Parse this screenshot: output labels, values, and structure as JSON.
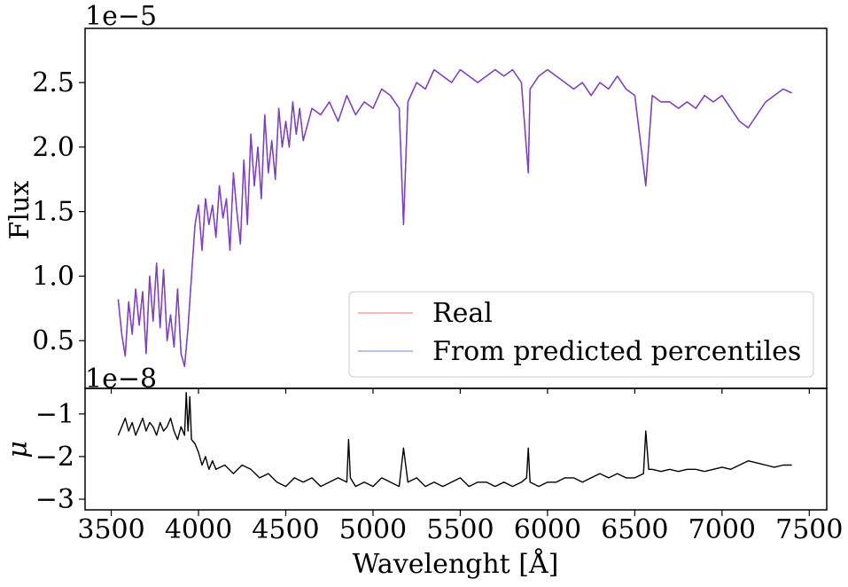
{
  "chart_data": [
    {
      "type": "line",
      "panel": "top",
      "ylabel": "Flux",
      "xlim": [
        3350,
        7600
      ],
      "ylim": [
        0.13,
        2.92
      ],
      "y_offset_label": "1e−5",
      "yticks": [
        0.5,
        1.0,
        1.5,
        2.0,
        2.5
      ],
      "ytick_labels": [
        "0.5",
        "1.0",
        "1.5",
        "2.0",
        "2.5"
      ],
      "grid": false,
      "legend": {
        "placement": "lower-right",
        "entries": [
          {
            "label": "Real",
            "color": "#f4a3a3"
          },
          {
            "label": "From predicted percentiles",
            "color": "#a3a8f0"
          }
        ]
      },
      "series": [
        {
          "name": "Real",
          "color": "#7f3fbf",
          "x": [
            3540,
            3560,
            3580,
            3600,
            3620,
            3640,
            3660,
            3680,
            3700,
            3720,
            3740,
            3760,
            3780,
            3800,
            3820,
            3840,
            3860,
            3880,
            3900,
            3920,
            3940,
            3960,
            3980,
            4000,
            4020,
            4040,
            4060,
            4080,
            4100,
            4120,
            4140,
            4160,
            4180,
            4200,
            4220,
            4240,
            4260,
            4280,
            4300,
            4320,
            4340,
            4360,
            4380,
            4400,
            4420,
            4440,
            4460,
            4480,
            4500,
            4520,
            4540,
            4560,
            4580,
            4600,
            4650,
            4700,
            4750,
            4800,
            4850,
            4900,
            4950,
            5000,
            5050,
            5100,
            5150,
            5175,
            5200,
            5250,
            5300,
            5350,
            5400,
            5450,
            5500,
            5550,
            5600,
            5650,
            5700,
            5750,
            5800,
            5850,
            5890,
            5900,
            5950,
            6000,
            6050,
            6100,
            6150,
            6200,
            6250,
            6300,
            6350,
            6400,
            6450,
            6500,
            6563,
            6600,
            6650,
            6700,
            6750,
            6800,
            6850,
            6900,
            6950,
            7000,
            7050,
            7100,
            7150,
            7200,
            7250,
            7300,
            7350,
            7400
          ],
          "y": [
            0.82,
            0.55,
            0.38,
            0.8,
            0.55,
            0.9,
            0.62,
            0.88,
            0.4,
            1.0,
            0.65,
            1.1,
            0.6,
            1.05,
            0.5,
            0.7,
            0.45,
            0.9,
            0.4,
            0.3,
            0.6,
            1.0,
            1.4,
            1.55,
            1.2,
            1.6,
            1.4,
            1.55,
            1.3,
            1.7,
            1.45,
            1.6,
            1.2,
            1.8,
            1.5,
            1.25,
            1.9,
            1.4,
            2.1,
            1.7,
            2.0,
            1.6,
            2.25,
            1.8,
            2.05,
            1.75,
            2.3,
            2.0,
            2.2,
            2.0,
            2.35,
            2.1,
            2.3,
            2.05,
            2.3,
            2.25,
            2.35,
            2.2,
            2.4,
            2.25,
            2.35,
            2.3,
            2.45,
            2.4,
            2.3,
            1.4,
            2.35,
            2.5,
            2.45,
            2.6,
            2.55,
            2.5,
            2.6,
            2.55,
            2.5,
            2.55,
            2.6,
            2.55,
            2.6,
            2.5,
            1.8,
            2.45,
            2.55,
            2.6,
            2.55,
            2.5,
            2.45,
            2.5,
            2.4,
            2.5,
            2.45,
            2.55,
            2.45,
            2.4,
            1.7,
            2.4,
            2.35,
            2.35,
            2.3,
            2.35,
            2.3,
            2.4,
            2.35,
            2.4,
            2.3,
            2.2,
            2.15,
            2.25,
            2.35,
            2.4,
            2.45,
            2.42
          ]
        },
        {
          "name": "From predicted percentiles",
          "color": "#7f3fbf",
          "x": [
            3540,
            3560,
            3580,
            3600,
            3620,
            3640,
            3660,
            3680,
            3700,
            3720,
            3740,
            3760,
            3780,
            3800,
            3820,
            3840,
            3860,
            3880,
            3900,
            3920,
            3940,
            3960,
            3980,
            4000,
            4020,
            4040,
            4060,
            4080,
            4100,
            4120,
            4140,
            4160,
            4180,
            4200,
            4220,
            4240,
            4260,
            4280,
            4300,
            4320,
            4340,
            4360,
            4380,
            4400,
            4420,
            4440,
            4460,
            4480,
            4500,
            4520,
            4540,
            4560,
            4580,
            4600,
            4650,
            4700,
            4750,
            4800,
            4850,
            4900,
            4950,
            5000,
            5050,
            5100,
            5150,
            5175,
            5200,
            5250,
            5300,
            5350,
            5400,
            5450,
            5500,
            5550,
            5600,
            5650,
            5700,
            5750,
            5800,
            5850,
            5890,
            5900,
            5950,
            6000,
            6050,
            6100,
            6150,
            6200,
            6250,
            6300,
            6350,
            6400,
            6450,
            6500,
            6563,
            6600,
            6650,
            6700,
            6750,
            6800,
            6850,
            6900,
            6950,
            7000,
            7050,
            7100,
            7150,
            7200,
            7250,
            7300,
            7350,
            7400
          ],
          "y": [
            0.82,
            0.55,
            0.38,
            0.8,
            0.55,
            0.9,
            0.62,
            0.88,
            0.4,
            1.0,
            0.65,
            1.1,
            0.6,
            1.05,
            0.5,
            0.7,
            0.45,
            0.9,
            0.4,
            0.3,
            0.6,
            1.0,
            1.4,
            1.55,
            1.2,
            1.6,
            1.4,
            1.55,
            1.3,
            1.7,
            1.45,
            1.6,
            1.2,
            1.8,
            1.5,
            1.25,
            1.9,
            1.4,
            2.1,
            1.7,
            2.0,
            1.6,
            2.25,
            1.8,
            2.05,
            1.75,
            2.3,
            2.0,
            2.2,
            2.0,
            2.35,
            2.1,
            2.3,
            2.05,
            2.3,
            2.25,
            2.35,
            2.2,
            2.4,
            2.25,
            2.35,
            2.3,
            2.45,
            2.4,
            2.3,
            1.4,
            2.35,
            2.5,
            2.45,
            2.6,
            2.55,
            2.5,
            2.6,
            2.55,
            2.5,
            2.55,
            2.6,
            2.55,
            2.6,
            2.5,
            1.8,
            2.45,
            2.55,
            2.6,
            2.55,
            2.5,
            2.45,
            2.5,
            2.4,
            2.5,
            2.45,
            2.55,
            2.45,
            2.4,
            1.7,
            2.4,
            2.35,
            2.35,
            2.3,
            2.35,
            2.3,
            2.4,
            2.35,
            2.4,
            2.3,
            2.2,
            2.15,
            2.25,
            2.35,
            2.4,
            2.45,
            2.42
          ]
        }
      ]
    },
    {
      "type": "line",
      "panel": "bottom",
      "xlabel": "Wavelenght [Å]",
      "ylabel": "μ",
      "xlim": [
        3350,
        7600
      ],
      "ylim": [
        -3.25,
        -0.4
      ],
      "y_offset_label": "1e−8",
      "xticks": [
        3500,
        4000,
        4500,
        5000,
        5500,
        6000,
        6500,
        7000,
        7500
      ],
      "xtick_labels": [
        "3500",
        "4000",
        "4500",
        "5000",
        "5500",
        "6000",
        "6500",
        "7000",
        "7500"
      ],
      "yticks": [
        -1,
        -2,
        -3
      ],
      "ytick_labels": [
        "−1",
        "−2",
        "−3"
      ],
      "grid": false,
      "series": [
        {
          "name": "",
          "color": "#000000",
          "x": [
            3540,
            3560,
            3580,
            3600,
            3620,
            3640,
            3660,
            3680,
            3700,
            3720,
            3740,
            3760,
            3780,
            3800,
            3820,
            3840,
            3860,
            3880,
            3900,
            3920,
            3930,
            3940,
            3950,
            3960,
            3980,
            4000,
            4020,
            4040,
            4060,
            4080,
            4100,
            4150,
            4200,
            4250,
            4300,
            4350,
            4400,
            4450,
            4500,
            4550,
            4600,
            4650,
            4700,
            4750,
            4800,
            4850,
            4860,
            4870,
            4900,
            4950,
            5000,
            5050,
            5100,
            5150,
            5175,
            5200,
            5250,
            5300,
            5350,
            5400,
            5450,
            5500,
            5550,
            5600,
            5650,
            5700,
            5750,
            5800,
            5850,
            5880,
            5890,
            5900,
            5950,
            6000,
            6050,
            6100,
            6150,
            6200,
            6250,
            6300,
            6350,
            6400,
            6450,
            6500,
            6550,
            6563,
            6580,
            6600,
            6650,
            6700,
            6750,
            6800,
            6850,
            6900,
            6950,
            7000,
            7050,
            7100,
            7150,
            7200,
            7250,
            7300,
            7350,
            7400
          ],
          "y": [
            -1.5,
            -1.3,
            -1.1,
            -1.4,
            -1.2,
            -1.5,
            -1.3,
            -1.1,
            -1.4,
            -1.2,
            -1.3,
            -1.5,
            -1.2,
            -1.4,
            -1.3,
            -1.1,
            -1.4,
            -1.6,
            -1.3,
            -1.5,
            -0.5,
            -1.4,
            -0.6,
            -1.6,
            -1.7,
            -1.9,
            -2.2,
            -2.0,
            -2.3,
            -2.1,
            -2.3,
            -2.2,
            -2.4,
            -2.2,
            -2.3,
            -2.5,
            -2.4,
            -2.6,
            -2.7,
            -2.5,
            -2.6,
            -2.5,
            -2.7,
            -2.6,
            -2.5,
            -2.6,
            -1.6,
            -2.5,
            -2.7,
            -2.6,
            -2.7,
            -2.5,
            -2.6,
            -2.7,
            -1.8,
            -2.6,
            -2.5,
            -2.7,
            -2.6,
            -2.7,
            -2.6,
            -2.5,
            -2.7,
            -2.6,
            -2.6,
            -2.7,
            -2.6,
            -2.7,
            -2.6,
            -2.5,
            -1.8,
            -2.6,
            -2.7,
            -2.6,
            -2.6,
            -2.5,
            -2.5,
            -2.6,
            -2.5,
            -2.4,
            -2.5,
            -2.4,
            -2.5,
            -2.5,
            -2.4,
            -1.4,
            -2.3,
            -2.3,
            -2.35,
            -2.3,
            -2.35,
            -2.3,
            -2.3,
            -2.35,
            -2.3,
            -2.25,
            -2.3,
            -2.2,
            -2.1,
            -2.15,
            -2.2,
            -2.25,
            -2.2,
            -2.2
          ]
        }
      ]
    }
  ]
}
